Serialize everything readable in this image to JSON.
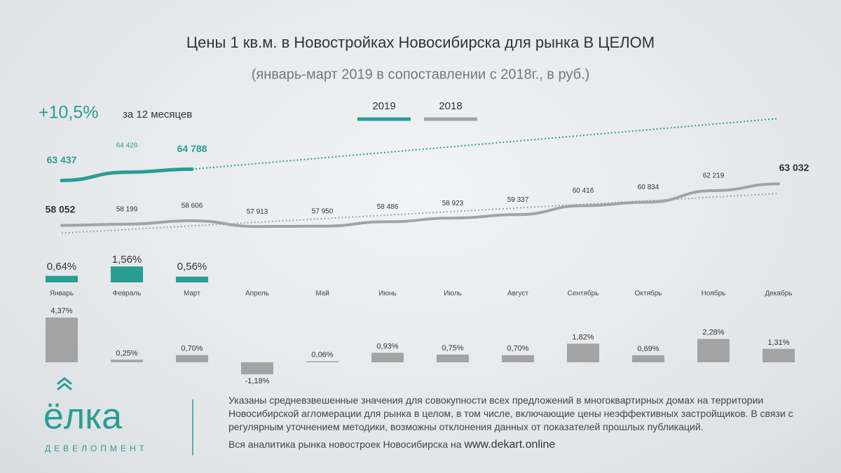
{
  "title": "Цены 1 кв.м. в Новостройках Новосибирска для рынка В ЦЕЛОМ",
  "subtitle": "(январь-март 2019 в сопоставлении с 2018г., в руб.)",
  "headline": {
    "value": "+10,5%",
    "text": "за 12 месяцев"
  },
  "chart_data": [
    {
      "type": "line",
      "categories": [
        "Январь",
        "Февраль",
        "Март",
        "Апрель",
        "Май",
        "Июнь",
        "Июль",
        "Август",
        "Сентябрь",
        "Октябрь",
        "Ноябрь",
        "Декабрь"
      ],
      "series": [
        {
          "name": "2019",
          "color": "#2a9d94",
          "values": [
            63437,
            64429,
            64788,
            null,
            null,
            null,
            null,
            null,
            null,
            null,
            null,
            null
          ],
          "value_labels": [
            "63 437",
            "64 429",
            "64 788",
            null,
            null,
            null,
            null,
            null,
            null,
            null,
            null,
            null
          ]
        },
        {
          "name": "2018",
          "color": "#a3a3a3",
          "values": [
            58052,
            58199,
            58606,
            57913,
            57950,
            58486,
            58923,
            59337,
            60416,
            60834,
            62219,
            63032
          ],
          "value_labels": [
            "58 052",
            "58 199",
            "58 606",
            "57 913",
            "57 950",
            "58 486",
            "58 923",
            "59 337",
            "60 416",
            "60 834",
            "62 219",
            "63 032"
          ]
        }
      ],
      "ylim": [
        56000,
        66000
      ],
      "trendline": true
    },
    {
      "type": "bar",
      "series": [
        {
          "name": "2019",
          "color": "#2a9d94",
          "values": [
            0.64,
            1.56,
            0.56
          ],
          "value_labels": [
            "0,64%",
            "1,56%",
            "0,56%"
          ]
        },
        {
          "name": "2018",
          "color": "#a3a3a3",
          "values": [
            4.37,
            0.25,
            0.7,
            -1.18,
            0.06,
            0.93,
            0.75,
            0.7,
            1.82,
            0.69,
            2.28,
            1.31
          ],
          "value_labels": [
            "4,37%",
            "0,25%",
            "0,70%",
            "-1,18%",
            "0,06%",
            "0,93%",
            "0,75%",
            "0,70%",
            "1,82%",
            "0,69%",
            "2,28%",
            "1,31%"
          ]
        }
      ],
      "ylim": [
        0,
        5
      ]
    }
  ],
  "logo": {
    "name": "ёлка",
    "tagline": "ДЕВЕЛОПМЕНТ"
  },
  "footer": {
    "note": "Указаны средневзвешенные значения для совокупности всех предложений в многоквартирных домах на территории Новосибирской агломерации для рынка в целом, в том числе, включающие цены неэффективных застройщиков. В связи с регулярным уточнением методики, возможны отклонения данных от показателей прошлых публикаций.",
    "link_text": "Вся аналитика рынка новостроек Новосибирска на",
    "url": "www.dekart.online"
  }
}
